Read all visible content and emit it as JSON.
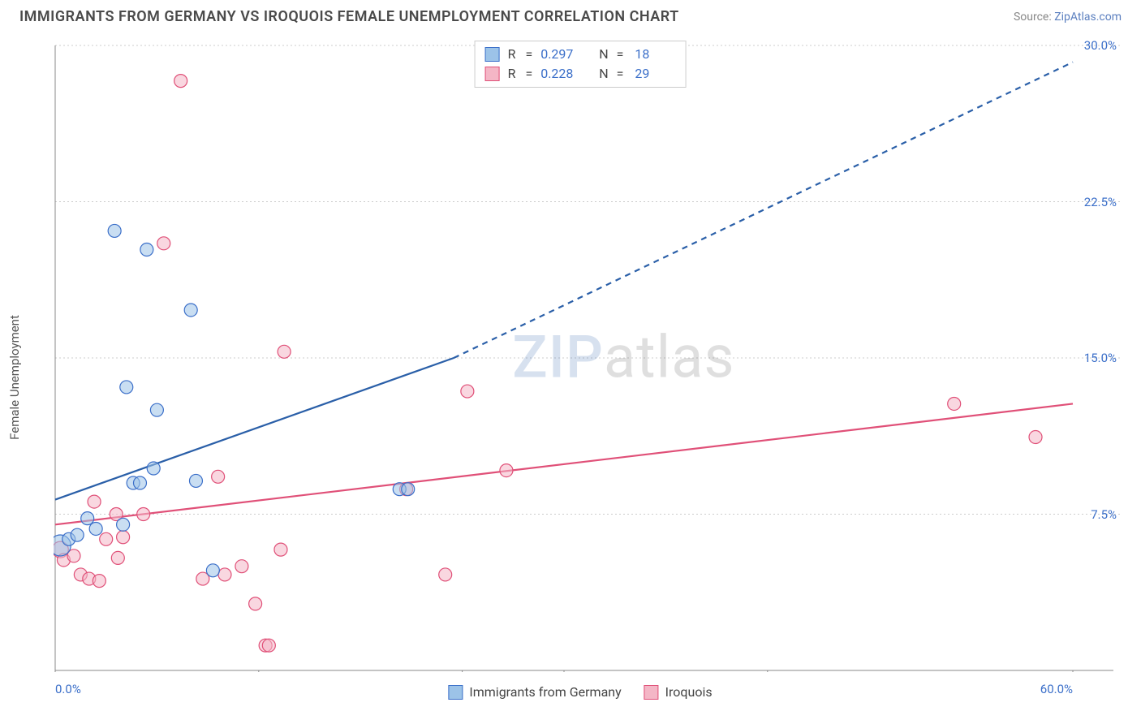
{
  "title": "IMMIGRANTS FROM GERMANY VS IROQUOIS FEMALE UNEMPLOYMENT CORRELATION CHART",
  "source_label": "Source:",
  "source_name": "ZipAtlas.com",
  "y_axis_label": "Female Unemployment",
  "watermark_zip": "ZIP",
  "watermark_atlas": "atlas",
  "chart": {
    "type": "scatter",
    "xlim": [
      0,
      60
    ],
    "ylim": [
      0,
      30
    ],
    "x_ticks": [
      0,
      30,
      60
    ],
    "x_tick_labels": [
      "0.0%",
      "",
      "60.0%"
    ],
    "y_ticks": [
      7.5,
      15.0,
      22.5,
      30.0
    ],
    "y_tick_labels": [
      "7.5%",
      "15.0%",
      "22.5%",
      "30.0%"
    ],
    "x_grid_ticks": [
      0,
      12,
      24,
      30,
      42,
      60
    ],
    "background": "#ffffff",
    "grid_color": "#cccccc",
    "grid_dash": "2,3",
    "axis_color": "#888888",
    "tick_color": "#888888",
    "series": [
      {
        "name": "Immigrants from Germany",
        "fill": "#9cc3e8",
        "stroke": "#3b6fc9",
        "fill_opacity": 0.55,
        "marker_r": 8,
        "R": "0.297",
        "N": "18",
        "trend": {
          "solid_x1": 0,
          "solid_y1": 8.2,
          "solid_x2": 23.5,
          "solid_y2": 15.0,
          "dash_x1": 23.5,
          "dash_y1": 15.0,
          "dash_x2": 60,
          "dash_y2": 29.2,
          "color": "#2a5fa8",
          "width": 2.2,
          "dash": "7,6"
        },
        "points": [
          {
            "x": 0.3,
            "y": 6.0,
            "r": 13
          },
          {
            "x": 0.8,
            "y": 6.3
          },
          {
            "x": 1.3,
            "y": 6.5
          },
          {
            "x": 1.9,
            "y": 7.3
          },
          {
            "x": 2.4,
            "y": 6.8
          },
          {
            "x": 4.0,
            "y": 7.0
          },
          {
            "x": 4.6,
            "y": 9.0
          },
          {
            "x": 5.0,
            "y": 9.0
          },
          {
            "x": 5.8,
            "y": 9.7
          },
          {
            "x": 8.3,
            "y": 9.1
          },
          {
            "x": 9.3,
            "y": 4.8
          },
          {
            "x": 6.0,
            "y": 12.5
          },
          {
            "x": 4.2,
            "y": 13.6
          },
          {
            "x": 8.0,
            "y": 17.3
          },
          {
            "x": 5.4,
            "y": 20.2
          },
          {
            "x": 3.5,
            "y": 21.1
          },
          {
            "x": 20.3,
            "y": 8.7
          },
          {
            "x": 20.8,
            "y": 8.7
          }
        ]
      },
      {
        "name": "Iroquois",
        "fill": "#f4b6c6",
        "stroke": "#e05078",
        "fill_opacity": 0.55,
        "marker_r": 8,
        "R": "0.228",
        "N": "29",
        "trend": {
          "solid_x1": 0,
          "solid_y1": 7.0,
          "solid_x2": 60,
          "solid_y2": 12.8,
          "color": "#e05078",
          "width": 2.2
        },
        "points": [
          {
            "x": 0.3,
            "y": 5.8,
            "r": 10
          },
          {
            "x": 0.5,
            "y": 5.3
          },
          {
            "x": 1.1,
            "y": 5.5
          },
          {
            "x": 1.5,
            "y": 4.6
          },
          {
            "x": 2.0,
            "y": 4.4
          },
          {
            "x": 2.3,
            "y": 8.1
          },
          {
            "x": 2.6,
            "y": 4.3
          },
          {
            "x": 3.0,
            "y": 6.3
          },
          {
            "x": 3.7,
            "y": 5.4
          },
          {
            "x": 3.6,
            "y": 7.5
          },
          {
            "x": 4.0,
            "y": 6.4
          },
          {
            "x": 5.2,
            "y": 7.5
          },
          {
            "x": 6.4,
            "y": 20.5
          },
          {
            "x": 7.4,
            "y": 28.3
          },
          {
            "x": 8.7,
            "y": 4.4
          },
          {
            "x": 9.6,
            "y": 9.3
          },
          {
            "x": 10.0,
            "y": 4.6
          },
          {
            "x": 11.0,
            "y": 5.0
          },
          {
            "x": 11.8,
            "y": 3.2
          },
          {
            "x": 12.4,
            "y": 1.2
          },
          {
            "x": 12.6,
            "y": 1.2
          },
          {
            "x": 13.3,
            "y": 5.8
          },
          {
            "x": 13.5,
            "y": 15.3
          },
          {
            "x": 20.7,
            "y": 8.7
          },
          {
            "x": 23.0,
            "y": 4.6
          },
          {
            "x": 24.3,
            "y": 13.4
          },
          {
            "x": 26.6,
            "y": 9.6
          },
          {
            "x": 53.0,
            "y": 12.8
          },
          {
            "x": 57.8,
            "y": 11.2
          }
        ]
      }
    ]
  },
  "legend_top_labels": {
    "R": "R",
    "eq": "=",
    "N": "N"
  },
  "legend_bottom": [
    {
      "label": "Immigrants from Germany",
      "fill": "#9cc3e8",
      "stroke": "#3b6fc9"
    },
    {
      "label": "Iroquois",
      "fill": "#f4b6c6",
      "stroke": "#e05078"
    }
  ]
}
